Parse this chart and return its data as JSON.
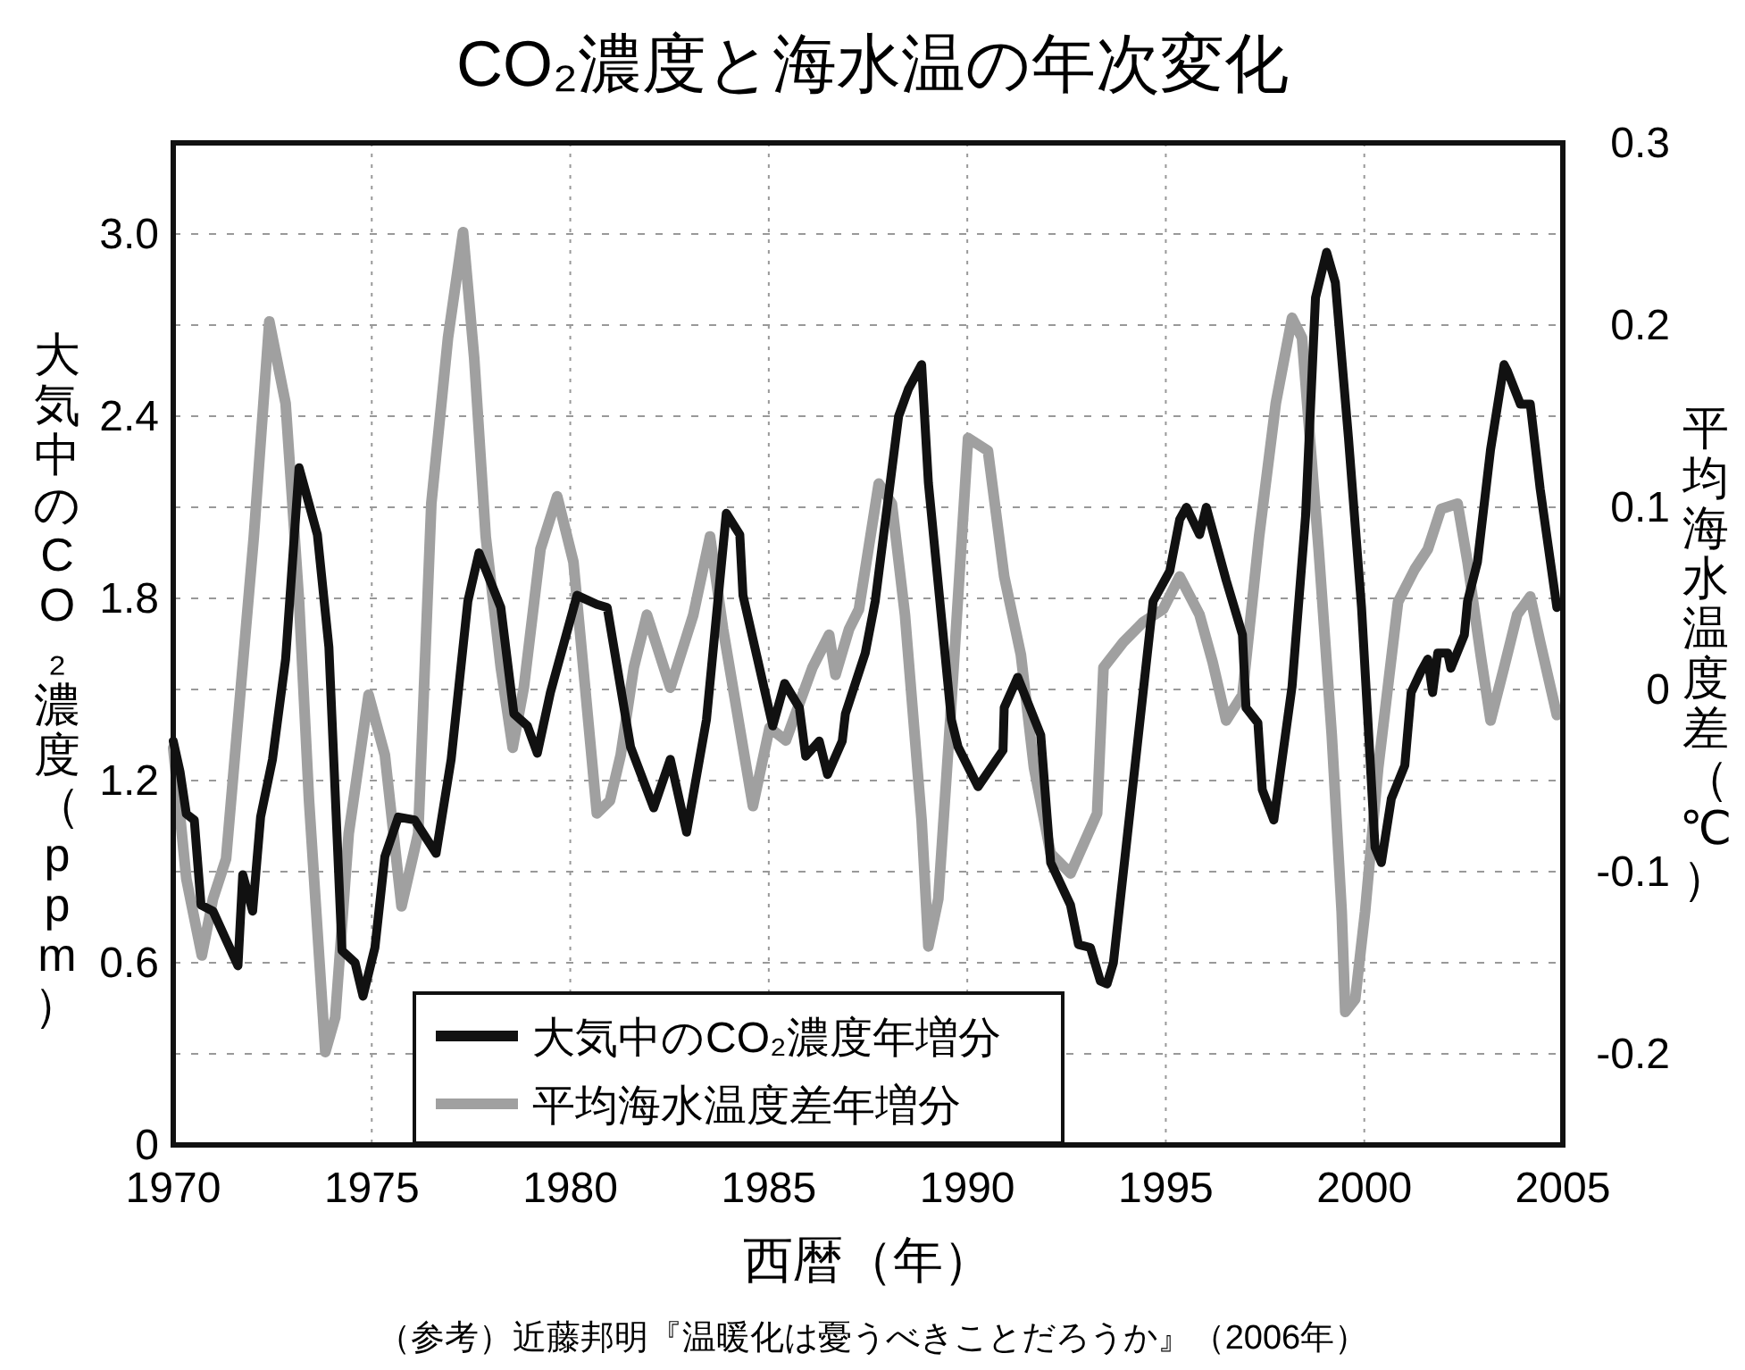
{
  "chart_data": {
    "type": "line",
    "title": "CO₂濃度と海水温の年次変化",
    "xlabel": "西暦（年）",
    "ylabel": "大気中のCO₂濃度（ppm）",
    "y2label": "平均海水温度差（℃）",
    "annotations": [
      "（参考）近藤邦明『温暖化は憂うべきことだろうか』（2006年）"
    ],
    "xlim": [
      1970,
      2005
    ],
    "xticks": [
      1970,
      1975,
      1980,
      1985,
      1990,
      1995,
      2000,
      2005
    ],
    "ylim": [
      0,
      3.3
    ],
    "yticks": [
      0,
      {
        "value": 0.3,
        "label": null
      },
      0.6,
      {
        "value": 0.9,
        "label": null
      },
      1.2,
      {
        "value": 1.5,
        "label": null
      },
      1.8,
      {
        "value": 2.1,
        "label": null
      },
      2.4,
      {
        "value": 2.7,
        "label": null
      },
      {
        "value": 3.0,
        "label": "3.0"
      }
    ],
    "y2lim": [
      -0.25,
      0.3
    ],
    "y2ticks": [
      -0.2,
      -0.1,
      0,
      0.1,
      0.2,
      0.3
    ],
    "grid": true,
    "legend": "bottom",
    "line_style": "solid",
    "series": [
      {
        "name": "大気中のCO₂濃度年増分",
        "color": "#111111",
        "x": [
          1970.0,
          1970.17,
          1970.33,
          1970.53,
          1970.7,
          1971.0,
          1971.63,
          1971.75,
          1972.0,
          1972.2,
          1972.5,
          1972.83,
          1973.17,
          1973.63,
          1973.92,
          1974.25,
          1974.58,
          1974.78,
          1975.08,
          1975.33,
          1975.67,
          1976.08,
          1976.62,
          1977.0,
          1977.42,
          1977.7,
          1978.25,
          1978.58,
          1978.92,
          1979.17,
          1979.5,
          1980.17,
          1980.67,
          1980.93,
          1981.52,
          1982.1,
          1982.52,
          1982.93,
          1983.43,
          1983.93,
          1984.27,
          1984.35,
          1985.1,
          1985.4,
          1985.77,
          1985.93,
          1986.27,
          1986.48,
          1986.85,
          1986.93,
          1987.43,
          1987.68,
          1988.27,
          1988.52,
          1988.85,
          1989.02,
          1989.6,
          1989.77,
          1990.27,
          1990.9,
          1990.93,
          1991.27,
          1991.85,
          1992.1,
          1992.6,
          1992.8,
          1993.1,
          1993.35,
          1993.52,
          1993.68,
          1994.68,
          1995.1,
          1995.35,
          1995.52,
          1995.85,
          1996.02,
          1996.52,
          1996.93,
          1997.02,
          1997.32,
          1997.43,
          1997.72,
          1998.18,
          1998.52,
          1998.77,
          1999.05,
          1999.27,
          1999.6,
          1999.93,
          2000.27,
          2000.43,
          2000.68,
          2001.02,
          2001.18,
          2001.43,
          2001.6,
          2001.72,
          2001.85,
          2002.1,
          2002.18,
          2002.52,
          2002.6,
          2002.85,
          2003.18,
          2003.52,
          2003.6,
          2003.93,
          2004.18,
          2004.43,
          2004.85
        ],
        "values": [
          1.33,
          1.23,
          1.09,
          1.07,
          0.79,
          0.77,
          0.59,
          0.89,
          0.77,
          1.08,
          1.27,
          1.6,
          2.23,
          2.01,
          1.64,
          0.64,
          0.6,
          0.49,
          0.65,
          0.95,
          1.08,
          1.07,
          0.96,
          1.27,
          1.79,
          1.95,
          1.77,
          1.42,
          1.38,
          1.29,
          1.49,
          1.81,
          1.78,
          1.77,
          1.31,
          1.11,
          1.27,
          1.03,
          1.4,
          2.08,
          2.01,
          1.81,
          1.38,
          1.52,
          1.44,
          1.28,
          1.33,
          1.22,
          1.33,
          1.42,
          1.62,
          1.79,
          2.4,
          2.49,
          2.57,
          2.18,
          1.4,
          1.31,
          1.18,
          1.3,
          1.44,
          1.54,
          1.35,
          0.93,
          0.79,
          0.66,
          0.65,
          0.54,
          0.53,
          0.6,
          1.79,
          1.89,
          2.06,
          2.1,
          2.01,
          2.1,
          1.86,
          1.68,
          1.44,
          1.39,
          1.17,
          1.07,
          1.51,
          2.07,
          2.79,
          2.94,
          2.84,
          2.33,
          1.77,
          0.98,
          0.93,
          1.14,
          1.25,
          1.49,
          1.56,
          1.6,
          1.49,
          1.62,
          1.62,
          1.57,
          1.68,
          1.79,
          1.92,
          2.29,
          2.57,
          2.55,
          2.44,
          2.44,
          2.16,
          1.77
        ]
      },
      {
        "name": "平均海水温度差年増分",
        "color": "#a0a0a0",
        "axis": "y2",
        "x": [
          1970.0,
          1970.33,
          1970.72,
          1971.0,
          1971.33,
          1971.67,
          1972.03,
          1972.42,
          1972.83,
          1973.17,
          1973.42,
          1973.83,
          1974.08,
          1974.42,
          1974.92,
          1975.33,
          1975.75,
          1976.17,
          1976.5,
          1976.92,
          1977.3,
          1977.58,
          1977.87,
          1978.25,
          1978.55,
          1978.83,
          1979.25,
          1979.67,
          1980.08,
          1980.67,
          1981.0,
          1981.27,
          1981.6,
          1981.93,
          1982.52,
          1983.1,
          1983.52,
          1983.85,
          1984.6,
          1985.02,
          1985.43,
          1986.1,
          1986.52,
          1986.68,
          1987.02,
          1987.27,
          1987.77,
          1988.1,
          1988.43,
          1988.85,
          1989.02,
          1989.27,
          1989.6,
          1990.02,
          1990.52,
          1990.93,
          1991.35,
          1991.68,
          1992.1,
          1992.6,
          1993.27,
          1993.43,
          1993.93,
          1994.43,
          1994.93,
          1995.35,
          1995.85,
          1996.18,
          1996.52,
          1996.93,
          1997.35,
          1997.77,
          1998.18,
          1998.43,
          1998.85,
          1999.18,
          1999.43,
          1999.52,
          1999.77,
          2000.02,
          2000.35,
          2000.85,
          2001.27,
          2001.6,
          2001.93,
          2002.35,
          2002.6,
          2002.93,
          2003.18,
          2003.52,
          2003.85,
          2004.18,
          2004.43,
          2004.85
        ],
        "values": [
          -0.032,
          -0.104,
          -0.146,
          -0.115,
          -0.093,
          -0.007,
          0.084,
          0.202,
          0.157,
          0.048,
          -0.061,
          -0.199,
          -0.18,
          -0.079,
          -0.003,
          -0.036,
          -0.119,
          -0.079,
          0.102,
          0.193,
          0.251,
          0.182,
          0.084,
          0.012,
          -0.032,
          0.001,
          0.077,
          0.106,
          0.07,
          -0.068,
          -0.061,
          -0.036,
          0.012,
          0.041,
          0.001,
          0.041,
          0.084,
          0.033,
          -0.064,
          -0.021,
          -0.028,
          0.012,
          0.03,
          0.008,
          0.033,
          0.044,
          0.113,
          0.102,
          0.041,
          -0.072,
          -0.141,
          -0.115,
          -0.007,
          0.138,
          0.131,
          0.062,
          0.019,
          -0.043,
          -0.09,
          -0.101,
          -0.068,
          0.012,
          0.026,
          0.037,
          0.044,
          0.062,
          0.041,
          0.015,
          -0.017,
          -0.003,
          0.084,
          0.157,
          0.204,
          0.193,
          0.077,
          -0.025,
          -0.122,
          -0.177,
          -0.17,
          -0.122,
          -0.043,
          0.048,
          0.066,
          0.077,
          0.099,
          0.102,
          0.07,
          0.019,
          -0.017,
          0.012,
          0.041,
          0.051,
          0.026,
          -0.014
        ]
      }
    ]
  }
}
